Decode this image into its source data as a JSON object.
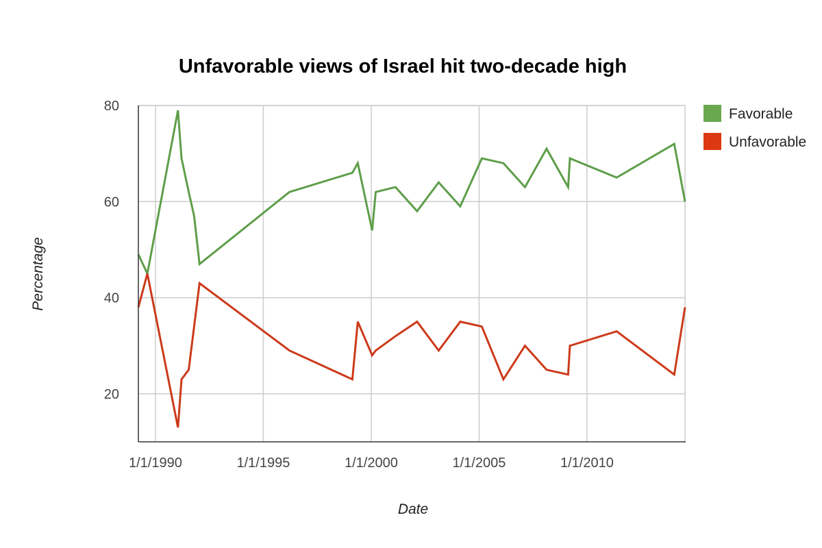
{
  "chart_data": {
    "type": "line",
    "title": "Unfavorable views of Israel hit two-decade high",
    "xlabel": "Date",
    "ylabel": "Percentage",
    "ylim": [
      10,
      80
    ],
    "yticks": [
      20,
      40,
      60,
      80
    ],
    "xticks": [
      "1/1/1990",
      "1/1/1995",
      "1/1/2000",
      "1/1/2005",
      "1/1/2010"
    ],
    "xtick_dates": [
      "1990-01-01",
      "1995-01-01",
      "2000-01-01",
      "2005-01-01",
      "2010-01-01"
    ],
    "xlim": [
      "1989-03",
      "2014-07"
    ],
    "grid": true,
    "legend_position": "right",
    "x": [
      "1989-03",
      "1989-08",
      "1991-01",
      "1991-03",
      "1991-07",
      "1991-10",
      "1992-01",
      "1996-03",
      "1999-02",
      "1999-05",
      "2000-01",
      "2000-03",
      "2001-02",
      "2002-02",
      "2003-02",
      "2004-02",
      "2005-02",
      "2006-02",
      "2007-02",
      "2008-02",
      "2009-02",
      "2009-03",
      "2011-05",
      "2014-01",
      "2014-07"
    ],
    "series": [
      {
        "name": "Favorable",
        "color": "#5e9e4a",
        "legend_color": "#6aa84f",
        "values": [
          49,
          45,
          79,
          69,
          62,
          57,
          47,
          62,
          66,
          68,
          54,
          62,
          63,
          58,
          64,
          59,
          69,
          68,
          63,
          71,
          63,
          69,
          65,
          72,
          60
        ]
      },
      {
        "name": "Unfavorable",
        "color": "#cc3a1a",
        "legend_color": "#dc3912",
        "values": [
          38,
          45,
          13,
          23,
          25,
          34,
          43,
          29,
          23,
          35,
          28,
          29,
          32,
          35,
          29,
          35,
          34,
          23,
          30,
          25,
          24,
          30,
          33,
          24,
          38
        ]
      }
    ]
  }
}
